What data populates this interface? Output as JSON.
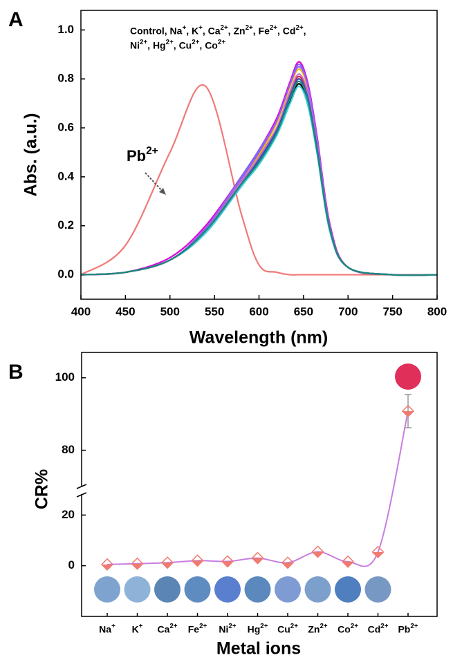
{
  "chart_data": [
    {
      "panel_label": "A",
      "type": "line",
      "xlabel": "Wavelength (nm)",
      "ylabel": "Abs. (a.u.)",
      "annotation": [
        "Control, Na+, K+, Ca2+, Zn2+, Fe2+, Cd2+,",
        "Ni2+, Hg2+, Cu2+, Co2+"
      ],
      "x": [
        400,
        450,
        500,
        540,
        580,
        600,
        620,
        635,
        645,
        655,
        665,
        680,
        700,
        750,
        800
      ],
      "xlim": [
        400,
        800
      ],
      "xticks": [
        400,
        450,
        500,
        550,
        600,
        650,
        700,
        750,
        800
      ],
      "ylim": [
        -0.1,
        1.08
      ],
      "yticks": [
        {
          "value": 0,
          "label": "0.0"
        },
        0.2,
        0.4,
        0.6,
        0.8,
        {
          "value": 1,
          "label": "1.0"
        }
      ],
      "series": [
        {
          "name": "Pb2+",
          "color": "#f07a78",
          "values": [
            0,
            0.12,
            0.5,
            0.77,
            0.25,
            0.04,
            0.01,
            0,
            0,
            0,
            0,
            0,
            0,
            0,
            0
          ]
        },
        {
          "color": "#000000",
          "values": [
            0,
            0.01,
            0.06,
            0.18,
            0.36,
            0.46,
            0.58,
            0.71,
            0.78,
            0.7,
            0.51,
            0.18,
            0.03,
            0,
            0
          ]
        },
        {
          "color": "#e000e0",
          "values": [
            0,
            0.01,
            0.07,
            0.2,
            0.4,
            0.51,
            0.64,
            0.79,
            0.87,
            0.78,
            0.57,
            0.2,
            0.03,
            0,
            0
          ]
        },
        {
          "color": "#7b68ee",
          "values": [
            0,
            0.01,
            0.06,
            0.19,
            0.4,
            0.51,
            0.63,
            0.78,
            0.86,
            0.77,
            0.56,
            0.19,
            0.03,
            0,
            0
          ]
        },
        {
          "color": "#e6c200",
          "values": [
            0,
            0.01,
            0.06,
            0.19,
            0.39,
            0.49,
            0.62,
            0.77,
            0.84,
            0.76,
            0.55,
            0.19,
            0.03,
            0,
            0
          ]
        },
        {
          "color": "#40d0e0",
          "values": [
            0,
            0.01,
            0.06,
            0.17,
            0.36,
            0.45,
            0.57,
            0.7,
            0.77,
            0.69,
            0.5,
            0.17,
            0.03,
            0,
            0
          ]
        },
        {
          "color": "#cc2244",
          "values": [
            0,
            0.01,
            0.06,
            0.18,
            0.37,
            0.48,
            0.6,
            0.74,
            0.81,
            0.73,
            0.53,
            0.18,
            0.03,
            0,
            0
          ]
        },
        {
          "color": "#9b59ff",
          "values": [
            0,
            0.01,
            0.06,
            0.19,
            0.39,
            0.5,
            0.63,
            0.78,
            0.85,
            0.77,
            0.55,
            0.19,
            0.03,
            0,
            0
          ]
        },
        {
          "color": "#3a9a3a",
          "values": [
            0,
            0.01,
            0.06,
            0.18,
            0.37,
            0.47,
            0.59,
            0.73,
            0.8,
            0.72,
            0.52,
            0.18,
            0.03,
            0,
            0
          ]
        },
        {
          "color": "#d070c0",
          "values": [
            0,
            0.01,
            0.06,
            0.18,
            0.38,
            0.48,
            0.6,
            0.75,
            0.82,
            0.74,
            0.53,
            0.18,
            0.03,
            0,
            0
          ]
        },
        {
          "color": "#3050c0",
          "values": [
            0,
            0.01,
            0.06,
            0.18,
            0.37,
            0.47,
            0.59,
            0.73,
            0.8,
            0.72,
            0.52,
            0.18,
            0.03,
            0,
            0
          ]
        },
        {
          "color": "#1a8a7a",
          "values": [
            0,
            0.01,
            0.06,
            0.18,
            0.37,
            0.46,
            0.58,
            0.72,
            0.79,
            0.71,
            0.51,
            0.18,
            0.03,
            0,
            0
          ]
        }
      ]
    },
    {
      "panel_label": "B",
      "type": "line",
      "xlabel": "Metal ions",
      "ylabel": "CR%",
      "categories": [
        "Na+",
        "K+",
        "Ca2+",
        "Fe2+",
        "Ni2+",
        "Hg2+",
        "Cu2+",
        "Zn2+",
        "Co2+",
        "Cd2+",
        "Pb2+"
      ],
      "values": [
        0.5,
        0.8,
        1.2,
        2.0,
        1.7,
        3.0,
        1.2,
        5.5,
        1.6,
        5.4,
        90.8
      ],
      "errors": [
        null,
        null,
        null,
        null,
        null,
        null,
        null,
        null,
        null,
        null,
        4.6
      ],
      "color": "#c77ee0",
      "marker_color": "#f07a70",
      "ylim": [
        [
          -20,
          28
        ],
        [
          70,
          107
        ]
      ],
      "yticks": [
        0,
        20,
        80,
        100
      ],
      "swatch_colors": [
        "#7fa3cf",
        "#8fb2d8",
        "#5b85b5",
        "#5f8cc0",
        "#5a7fcf",
        "#5b88bd",
        "#7e9cd3",
        "#7c9fcc",
        "#4f7fbf",
        "#7898c4",
        "#e0305a"
      ]
    }
  ]
}
